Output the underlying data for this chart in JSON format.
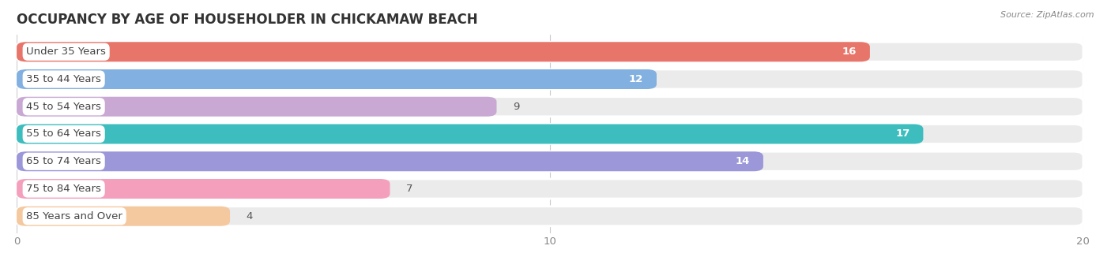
{
  "title": "OCCUPANCY BY AGE OF HOUSEHOLDER IN CHICKAMAW BEACH",
  "source": "Source: ZipAtlas.com",
  "categories": [
    "Under 35 Years",
    "35 to 44 Years",
    "45 to 54 Years",
    "55 to 64 Years",
    "65 to 74 Years",
    "75 to 84 Years",
    "85 Years and Over"
  ],
  "values": [
    16,
    12,
    9,
    17,
    14,
    7,
    4
  ],
  "bar_colors": [
    "#E8756A",
    "#82B0E0",
    "#C9A8D4",
    "#3DBDBE",
    "#9B97D8",
    "#F4A0BC",
    "#F5C9A0"
  ],
  "xlim": [
    0,
    20
  ],
  "xticks": [
    0,
    10,
    20
  ],
  "background_color": "#ffffff",
  "bar_bg_color": "#ebebeb",
  "bar_separator_color": "#ffffff",
  "title_fontsize": 12,
  "label_fontsize": 9.5,
  "value_fontsize": 9.5
}
